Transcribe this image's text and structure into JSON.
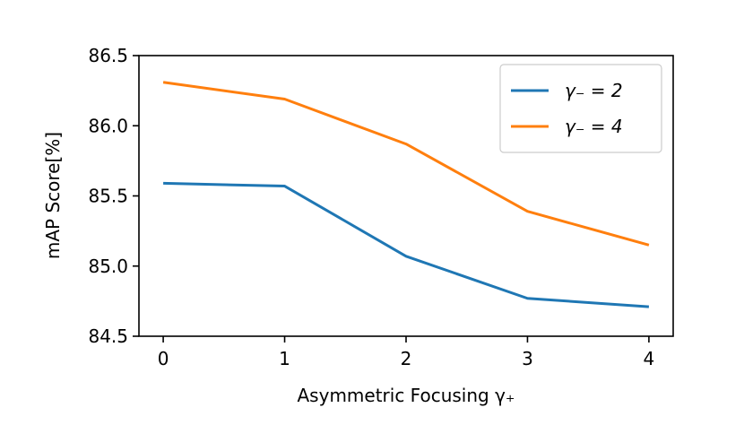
{
  "chart_data": {
    "type": "line",
    "title": "",
    "xlabel": "Asymmetric Focusing γ₊",
    "ylabel": "mAP Score[%]",
    "x": [
      0,
      1,
      2,
      3,
      4
    ],
    "xticks": [
      "0",
      "1",
      "2",
      "3",
      "4"
    ],
    "xlim": [
      -0.2,
      4.2
    ],
    "yticks": [
      "84.5",
      "85.0",
      "85.5",
      "86.0",
      "86.5"
    ],
    "ylim": [
      84.5,
      86.5
    ],
    "grid": false,
    "legend_position": "top-right",
    "series": [
      {
        "name": "γ₋ = 2",
        "color": "#1f77b4",
        "values": [
          85.59,
          85.57,
          85.07,
          84.77,
          84.71
        ]
      },
      {
        "name": "γ₋ = 4",
        "color": "#ff7f0e",
        "values": [
          86.31,
          86.19,
          85.87,
          85.39,
          85.15
        ]
      }
    ]
  }
}
